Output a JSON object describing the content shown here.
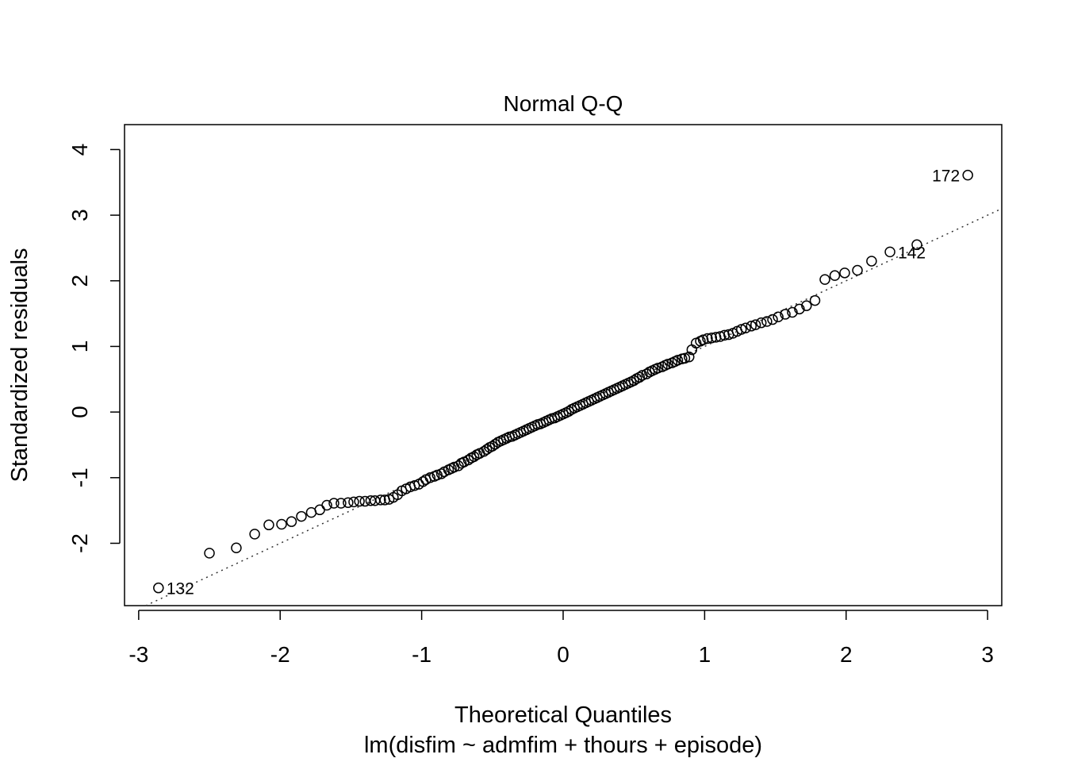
{
  "chart_data": {
    "type": "scatter",
    "title": "Normal Q-Q",
    "xlabel": "Theoretical Quantiles",
    "ylabel": "Standardized residuals",
    "subtitle": "lm(disfim ~ admfim + thours + episode)",
    "xlim": [
      -3.1,
      3.1
    ],
    "ylim": [
      -2.95,
      4.38
    ],
    "x_ticks": [
      -3,
      -2,
      -1,
      0,
      1,
      2,
      3
    ],
    "x_tick_labels": [
      "-3",
      "-2",
      "-1",
      "0",
      "1",
      "2",
      "3"
    ],
    "y_ticks": [
      -2,
      -1,
      0,
      1,
      2,
      3,
      4
    ],
    "y_tick_labels": [
      "-2",
      "-1",
      "0",
      "1",
      "2",
      "3",
      "4"
    ],
    "grid": false,
    "reference_line": {
      "style": "dotted",
      "intercept": 0.0,
      "slope": 1.0
    },
    "labeled_points": [
      {
        "label": "172",
        "x": 2.86,
        "y": 3.61,
        "side": "left"
      },
      {
        "label": "142",
        "x": 2.31,
        "y": 2.44,
        "side": "right"
      },
      {
        "label": "132",
        "x": -2.86,
        "y": -2.68,
        "side": "right"
      }
    ],
    "points": [
      [
        -2.86,
        -2.68
      ],
      [
        -2.5,
        -2.15
      ],
      [
        -2.31,
        -2.07
      ],
      [
        -2.18,
        -1.86
      ],
      [
        -2.08,
        -1.72
      ],
      [
        -1.99,
        -1.71
      ],
      [
        -1.92,
        -1.67
      ],
      [
        -1.85,
        -1.59
      ],
      [
        -1.78,
        -1.53
      ],
      [
        -1.72,
        -1.49
      ],
      [
        -1.67,
        -1.42
      ],
      [
        -1.62,
        -1.39
      ],
      [
        -1.57,
        -1.39
      ],
      [
        -1.52,
        -1.38
      ],
      [
        -1.48,
        -1.37
      ],
      [
        -1.44,
        -1.36
      ],
      [
        -1.4,
        -1.36
      ],
      [
        -1.36,
        -1.35
      ],
      [
        -1.33,
        -1.35
      ],
      [
        -1.29,
        -1.34
      ],
      [
        -1.26,
        -1.34
      ],
      [
        -1.23,
        -1.33
      ],
      [
        -1.2,
        -1.3
      ],
      [
        -1.17,
        -1.26
      ],
      [
        -1.14,
        -1.2
      ],
      [
        -1.11,
        -1.17
      ],
      [
        -1.08,
        -1.14
      ],
      [
        -1.05,
        -1.12
      ],
      [
        -1.02,
        -1.1
      ],
      [
        -0.99,
        -1.06
      ],
      [
        -0.97,
        -1.03
      ],
      [
        -0.94,
        -1.0
      ],
      [
        -0.91,
        -0.98
      ],
      [
        -0.89,
        -0.96
      ],
      [
        -0.86,
        -0.94
      ],
      [
        -0.84,
        -0.91
      ],
      [
        -0.81,
        -0.88
      ],
      [
        -0.79,
        -0.86
      ],
      [
        -0.77,
        -0.84
      ],
      [
        -0.74,
        -0.82
      ],
      [
        -0.72,
        -0.78
      ],
      [
        -0.7,
        -0.76
      ],
      [
        -0.67,
        -0.73
      ],
      [
        -0.65,
        -0.7
      ],
      [
        -0.63,
        -0.68
      ],
      [
        -0.61,
        -0.65
      ],
      [
        -0.59,
        -0.63
      ],
      [
        -0.56,
        -0.6
      ],
      [
        -0.54,
        -0.57
      ],
      [
        -0.52,
        -0.54
      ],
      [
        -0.5,
        -0.52
      ],
      [
        -0.48,
        -0.49
      ],
      [
        -0.46,
        -0.46
      ],
      [
        -0.44,
        -0.44
      ],
      [
        -0.42,
        -0.42
      ],
      [
        -0.4,
        -0.4
      ],
      [
        -0.38,
        -0.38
      ],
      [
        -0.36,
        -0.37
      ],
      [
        -0.34,
        -0.35
      ],
      [
        -0.32,
        -0.33
      ],
      [
        -0.3,
        -0.31
      ],
      [
        -0.28,
        -0.29
      ],
      [
        -0.26,
        -0.27
      ],
      [
        -0.24,
        -0.25
      ],
      [
        -0.22,
        -0.23
      ],
      [
        -0.2,
        -0.21
      ],
      [
        -0.18,
        -0.19
      ],
      [
        -0.16,
        -0.18
      ],
      [
        -0.14,
        -0.16
      ],
      [
        -0.12,
        -0.14
      ],
      [
        -0.1,
        -0.12
      ],
      [
        -0.08,
        -0.1
      ],
      [
        -0.06,
        -0.09
      ],
      [
        -0.04,
        -0.07
      ],
      [
        -0.02,
        -0.05
      ],
      [
        0.0,
        -0.03
      ],
      [
        0.02,
        -0.01
      ],
      [
        0.04,
        0.01
      ],
      [
        0.06,
        0.04
      ],
      [
        0.08,
        0.06
      ],
      [
        0.1,
        0.08
      ],
      [
        0.12,
        0.1
      ],
      [
        0.14,
        0.12
      ],
      [
        0.16,
        0.14
      ],
      [
        0.18,
        0.16
      ],
      [
        0.2,
        0.18
      ],
      [
        0.22,
        0.2
      ],
      [
        0.24,
        0.22
      ],
      [
        0.26,
        0.24
      ],
      [
        0.28,
        0.26
      ],
      [
        0.3,
        0.28
      ],
      [
        0.32,
        0.3
      ],
      [
        0.34,
        0.32
      ],
      [
        0.36,
        0.34
      ],
      [
        0.38,
        0.36
      ],
      [
        0.4,
        0.38
      ],
      [
        0.42,
        0.4
      ],
      [
        0.44,
        0.42
      ],
      [
        0.46,
        0.44
      ],
      [
        0.48,
        0.46
      ],
      [
        0.5,
        0.48
      ],
      [
        0.52,
        0.51
      ],
      [
        0.54,
        0.53
      ],
      [
        0.56,
        0.56
      ],
      [
        0.59,
        0.58
      ],
      [
        0.61,
        0.61
      ],
      [
        0.63,
        0.63
      ],
      [
        0.65,
        0.65
      ],
      [
        0.67,
        0.67
      ],
      [
        0.7,
        0.69
      ],
      [
        0.72,
        0.71
      ],
      [
        0.74,
        0.73
      ],
      [
        0.77,
        0.75
      ],
      [
        0.79,
        0.77
      ],
      [
        0.81,
        0.79
      ],
      [
        0.84,
        0.81
      ],
      [
        0.86,
        0.82
      ],
      [
        0.89,
        0.84
      ],
      [
        0.91,
        0.95
      ],
      [
        0.94,
        1.05
      ],
      [
        0.97,
        1.08
      ],
      [
        0.99,
        1.1
      ],
      [
        1.02,
        1.12
      ],
      [
        1.05,
        1.13
      ],
      [
        1.08,
        1.14
      ],
      [
        1.11,
        1.15
      ],
      [
        1.14,
        1.17
      ],
      [
        1.17,
        1.18
      ],
      [
        1.2,
        1.2
      ],
      [
        1.23,
        1.23
      ],
      [
        1.26,
        1.26
      ],
      [
        1.29,
        1.28
      ],
      [
        1.33,
        1.31
      ],
      [
        1.36,
        1.33
      ],
      [
        1.4,
        1.36
      ],
      [
        1.44,
        1.38
      ],
      [
        1.48,
        1.41
      ],
      [
        1.52,
        1.45
      ],
      [
        1.57,
        1.49
      ],
      [
        1.62,
        1.52
      ],
      [
        1.67,
        1.57
      ],
      [
        1.72,
        1.62
      ],
      [
        1.78,
        1.7
      ],
      [
        1.85,
        2.02
      ],
      [
        1.92,
        2.08
      ],
      [
        1.99,
        2.12
      ],
      [
        2.08,
        2.16
      ],
      [
        2.18,
        2.3
      ],
      [
        2.31,
        2.44
      ],
      [
        2.5,
        2.55
      ],
      [
        2.86,
        3.61
      ]
    ]
  }
}
